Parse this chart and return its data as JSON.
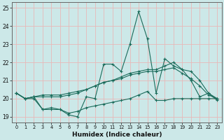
{
  "xlabel": "Humidex (Indice chaleur)",
  "ylabel": "",
  "xlim": [
    -0.5,
    23.5
  ],
  "ylim": [
    18.7,
    25.3
  ],
  "yticks": [
    19,
    20,
    21,
    22,
    23,
    24,
    25
  ],
  "xticks": [
    0,
    1,
    2,
    3,
    4,
    5,
    6,
    7,
    8,
    9,
    10,
    11,
    12,
    13,
    14,
    15,
    16,
    17,
    18,
    19,
    20,
    21,
    22,
    23
  ],
  "background_color": "#cce8e8",
  "grid_color": "#e8b8b8",
  "line_color": "#1a6b5a",
  "series": [
    {
      "x": [
        0,
        1,
        2,
        3,
        4,
        5,
        6,
        7,
        8,
        9,
        10,
        11,
        12,
        13,
        14,
        15,
        16,
        17,
        18,
        19,
        20,
        21,
        22,
        23
      ],
      "y": [
        20.3,
        20.0,
        20.1,
        19.4,
        19.4,
        19.4,
        19.1,
        19.0,
        20.1,
        20.0,
        21.9,
        21.9,
        21.5,
        23.0,
        24.8,
        23.3,
        20.3,
        22.2,
        21.8,
        21.6,
        21.0,
        20.1,
        20.3,
        19.9
      ]
    },
    {
      "x": [
        0,
        1,
        2,
        3,
        4,
        5,
        6,
        7,
        8,
        9,
        10,
        11,
        12,
        13,
        14,
        15,
        16,
        17,
        18,
        19,
        20,
        21,
        22,
        23
      ],
      "y": [
        20.3,
        20.0,
        20.1,
        20.2,
        20.2,
        20.2,
        20.3,
        20.4,
        20.5,
        20.7,
        20.9,
        21.0,
        21.2,
        21.4,
        21.5,
        21.6,
        21.6,
        21.8,
        22.0,
        21.6,
        21.5,
        21.0,
        20.3,
        20.0
      ]
    },
    {
      "x": [
        0,
        1,
        2,
        3,
        4,
        5,
        6,
        7,
        8,
        9,
        10,
        11,
        12,
        13,
        14,
        15,
        16,
        17,
        18,
        19,
        20,
        21,
        22,
        23
      ],
      "y": [
        20.3,
        20.0,
        20.1,
        20.1,
        20.1,
        20.1,
        20.2,
        20.3,
        20.5,
        20.7,
        20.9,
        21.0,
        21.1,
        21.3,
        21.4,
        21.5,
        21.5,
        21.6,
        21.7,
        21.4,
        21.1,
        20.7,
        20.2,
        20.0
      ]
    },
    {
      "x": [
        0,
        1,
        2,
        3,
        4,
        5,
        6,
        7,
        8,
        9,
        10,
        11,
        12,
        13,
        14,
        15,
        16,
        17,
        18,
        19,
        20,
        21,
        22,
        23
      ],
      "y": [
        20.3,
        20.0,
        20.0,
        19.4,
        19.5,
        19.4,
        19.2,
        19.3,
        19.5,
        19.6,
        19.7,
        19.8,
        19.9,
        20.0,
        20.2,
        20.4,
        19.9,
        19.9,
        20.0,
        20.0,
        20.0,
        20.0,
        20.0,
        20.0
      ]
    }
  ]
}
